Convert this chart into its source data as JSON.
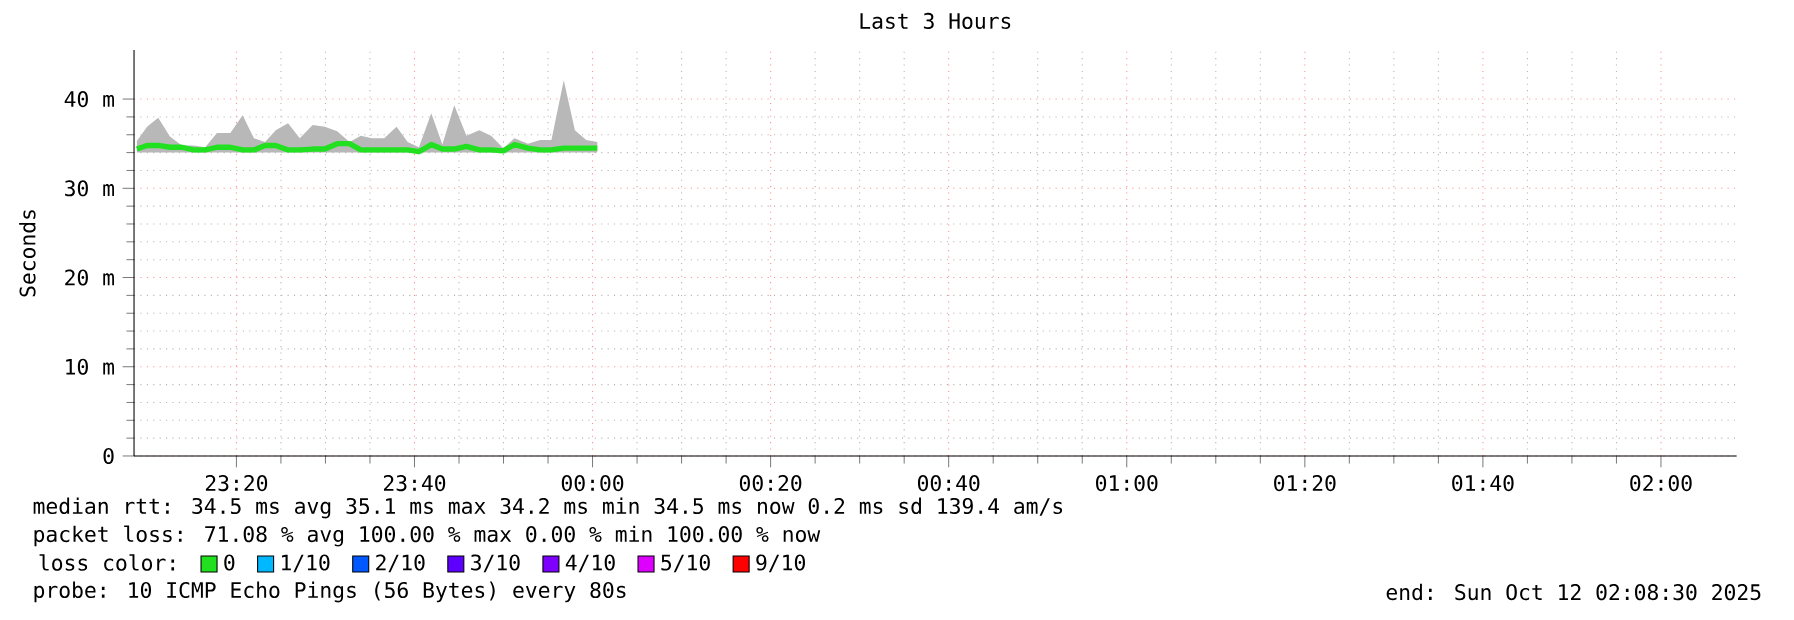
{
  "chart_data": {
    "type": "line",
    "title": "Last 3 Hours",
    "ylabel": "Seconds",
    "legend_title": "loss color:",
    "legend": "bottom",
    "grid": true,
    "xlim": [
      "2025-10-11T23:08:30",
      "2025-10-12T02:08:30"
    ],
    "ylim": [
      0,
      45.5
    ],
    "xticks": [
      {
        "value": "2025-10-11T23:20",
        "label": "23:20"
      },
      {
        "value": "2025-10-11T23:40",
        "label": "23:40"
      },
      {
        "value": "2025-10-12T00:00",
        "label": "00:00"
      },
      {
        "value": "2025-10-12T00:20",
        "label": "00:20"
      },
      {
        "value": "2025-10-12T00:40",
        "label": "00:40"
      },
      {
        "value": "2025-10-12T01:00",
        "label": "01:00"
      },
      {
        "value": "2025-10-12T01:20",
        "label": "01:20"
      },
      {
        "value": "2025-10-12T01:40",
        "label": "01:40"
      },
      {
        "value": "2025-10-12T02:00",
        "label": "02:00"
      }
    ],
    "yticks": [
      0,
      {
        "value": 10,
        "label": "10 m"
      },
      {
        "value": 20,
        "label": "20 m"
      },
      {
        "value": 30,
        "label": "30 m"
      },
      {
        "value": 40,
        "label": "40 m"
      }
    ],
    "series": [
      {
        "name": "0",
        "color": "#20e020",
        "x": [
          "2025-10-11T23:08:49",
          "2025-10-11T23:09:58",
          "2025-10-11T23:11:13",
          "2025-10-11T23:12:32",
          "2025-10-11T23:13:52",
          "2025-10-11T23:15:11",
          "2025-10-11T23:16:30",
          "2025-10-11T23:17:49",
          "2025-10-11T23:19:19",
          "2025-10-11T23:20:42",
          "2025-10-11T23:21:58",
          "2025-10-11T23:23:13",
          "2025-10-11T23:24:25",
          "2025-10-11T23:25:48",
          "2025-10-11T23:27:07",
          "2025-10-11T23:28:34",
          "2025-10-11T23:29:56",
          "2025-10-11T23:31:19",
          "2025-10-11T23:32:42",
          "2025-10-11T23:33:58",
          "2025-10-11T23:35:13",
          "2025-10-11T23:36:36",
          "2025-10-11T23:37:59",
          "2025-10-11T23:39:14",
          "2025-10-11T23:40:30",
          "2025-10-11T23:41:53",
          "2025-10-11T23:43:08",
          "2025-10-11T23:44:28",
          "2025-10-11T23:45:50",
          "2025-10-11T23:47:17",
          "2025-10-11T23:48:36",
          "2025-10-11T23:49:59",
          "2025-10-11T23:51:14",
          "2025-10-11T23:52:44",
          "2025-10-11T23:54:07",
          "2025-10-11T23:55:23",
          "2025-10-11T23:56:46",
          "2025-10-11T23:58:01",
          "2025-10-11T23:59:17",
          "2025-10-12T00:00:32"
        ],
        "values": [
          34.4,
          34.8,
          34.8,
          34.6,
          34.6,
          34.3,
          34.3,
          34.6,
          34.6,
          34.3,
          34.3,
          34.8,
          34.8,
          34.3,
          34.3,
          34.4,
          34.4,
          35.0,
          35.0,
          34.3,
          34.3,
          34.3,
          34.3,
          34.3,
          34.1,
          34.9,
          34.4,
          34.4,
          34.7,
          34.3,
          34.3,
          34.2,
          34.9,
          34.5,
          34.3,
          34.3,
          34.5,
          34.5,
          34.5,
          34.5
        ],
        "lower": [
          34.0,
          34.0,
          34.0,
          34.0,
          34.0,
          34.0,
          34.0,
          34.0,
          34.0,
          34.0,
          34.0,
          34.0,
          34.0,
          34.0,
          34.0,
          34.0,
          34.0,
          34.0,
          34.0,
          34.0,
          34.0,
          34.0,
          34.0,
          34.0,
          34.0,
          34.0,
          34.0,
          34.0,
          34.0,
          34.0,
          34.0,
          34.0,
          34.0,
          34.0,
          34.0,
          34.0,
          34.0,
          34.0,
          34.0,
          34.0
        ],
        "upper": [
          35.3,
          36.9,
          37.9,
          35.8,
          34.8,
          34.8,
          34.6,
          36.2,
          36.2,
          38.2,
          35.6,
          35.2,
          36.5,
          37.3,
          35.6,
          37.1,
          36.9,
          36.4,
          35.2,
          35.9,
          35.6,
          35.6,
          36.9,
          35.2,
          34.6,
          38.4,
          34.9,
          39.3,
          35.9,
          36.5,
          35.9,
          34.5,
          35.6,
          35.0,
          35.4,
          35.4,
          42.1,
          36.5,
          35.4,
          35.2
        ]
      },
      {
        "name": "1/10",
        "color": "#00b8ff"
      },
      {
        "name": "2/10",
        "color": "#0059ff"
      },
      {
        "name": "3/10",
        "color": "#5e00ff"
      },
      {
        "name": "4/10",
        "color": "#7e00ff"
      },
      {
        "name": "5/10",
        "color": "#dd00ff"
      },
      {
        "name": "9/10",
        "color": "#ff0000"
      }
    ],
    "annotations": [
      "median rtt:  34.5 ms avg  35.1 ms max  34.2 ms min  34.5 ms now  0.2 ms sd  139.4   am/s",
      "packet loss: 71.08 % avg  100.00 % max  0.00 % min  100.00 % now",
      "probe:       10 ICMP Echo Pings (56 Bytes) every 80s",
      "end: Sun Oct 12 02:08:30 2025"
    ]
  }
}
